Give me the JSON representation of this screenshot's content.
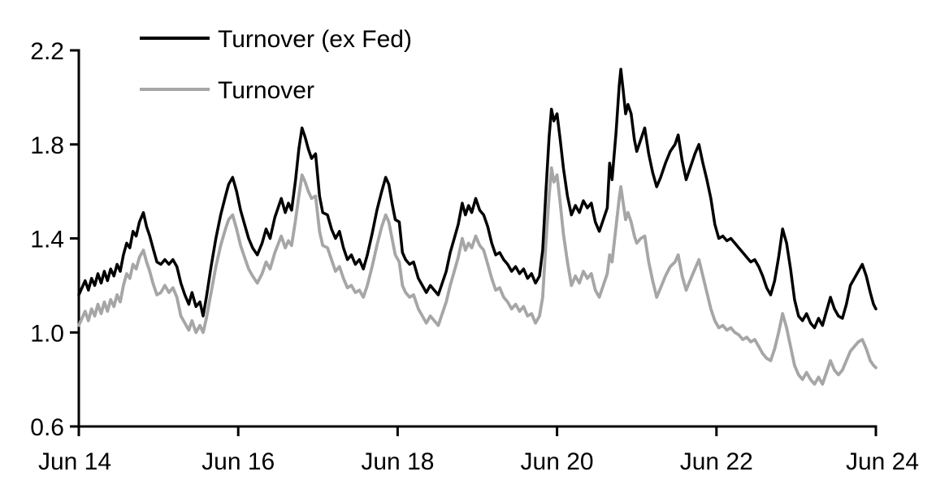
{
  "page": {
    "background": "#ffffff"
  },
  "chart_data": {
    "type": "line",
    "title": "",
    "xlabel": "",
    "ylabel": "",
    "grid": false,
    "legend_position": "top-left-inside",
    "x_axis": {
      "unit": "years since Jun 2014",
      "tick_positions": [
        0,
        2,
        4,
        6,
        8,
        10
      ],
      "tick_labels": [
        "Jun 14",
        "Jun 16",
        "Jun 18",
        "Jun 20",
        "Jun 22",
        "Jun 24"
      ]
    },
    "y_axis": {
      "range": [
        0.6,
        2.2
      ],
      "tick_values": [
        2.2,
        1.8,
        1.4,
        1.0,
        0.6
      ],
      "tick_labels": [
        "2.2",
        "1.8",
        "1.4",
        "1.0",
        "0.6"
      ]
    },
    "x": [
      0,
      0.04,
      0.08,
      0.12,
      0.16,
      0.2,
      0.24,
      0.28,
      0.32,
      0.36,
      0.4,
      0.44,
      0.48,
      0.52,
      0.56,
      0.6,
      0.64,
      0.68,
      0.72,
      0.76,
      0.81,
      0.85,
      0.89,
      0.93,
      0.98,
      1.03,
      1.08,
      1.13,
      1.18,
      1.23,
      1.28,
      1.33,
      1.38,
      1.42,
      1.47,
      1.52,
      1.56,
      1.6,
      1.66,
      1.72,
      1.78,
      1.84,
      1.88,
      1.93,
      1.98,
      2.03,
      2.08,
      2.13,
      2.18,
      2.24,
      2.3,
      2.35,
      2.4,
      2.46,
      2.54,
      2.59,
      2.63,
      2.67,
      2.72,
      2.76,
      2.8,
      2.84,
      2.88,
      2.92,
      2.97,
      3.02,
      3.06,
      3.12,
      3.17,
      3.22,
      3.27,
      3.32,
      3.37,
      3.42,
      3.47,
      3.52,
      3.57,
      3.62,
      3.68,
      3.74,
      3.8,
      3.85,
      3.89,
      3.93,
      3.97,
      4.02,
      4.06,
      4.1,
      4.15,
      4.2,
      4.26,
      4.31,
      4.36,
      4.41,
      4.46,
      4.51,
      4.56,
      4.61,
      4.66,
      4.71,
      4.76,
      4.81,
      4.85,
      4.89,
      4.93,
      4.98,
      5.03,
      5.08,
      5.13,
      5.18,
      5.23,
      5.28,
      5.33,
      5.38,
      5.43,
      5.48,
      5.53,
      5.58,
      5.63,
      5.68,
      5.73,
      5.78,
      5.82,
      5.86,
      5.9,
      5.93,
      5.96,
      6.0,
      6.04,
      6.08,
      6.13,
      6.18,
      6.23,
      6.28,
      6.33,
      6.38,
      6.43,
      6.48,
      6.53,
      6.58,
      6.63,
      6.66,
      6.69,
      6.74,
      6.78,
      6.8,
      6.83,
      6.86,
      6.89,
      6.93,
      6.97,
      7.0,
      7.05,
      7.1,
      7.15,
      7.2,
      7.25,
      7.3,
      7.36,
      7.42,
      7.48,
      7.52,
      7.57,
      7.62,
      7.68,
      7.73,
      7.78,
      7.83,
      7.88,
      7.93,
      7.98,
      8.03,
      8.08,
      8.13,
      8.18,
      8.23,
      8.28,
      8.33,
      8.38,
      8.43,
      8.48,
      8.53,
      8.58,
      8.63,
      8.68,
      8.73,
      8.78,
      8.83,
      8.88,
      8.93,
      8.98,
      9.03,
      9.08,
      9.13,
      9.18,
      9.23,
      9.28,
      9.33,
      9.38,
      9.43,
      9.48,
      9.53,
      9.58,
      9.63,
      9.68,
      9.73,
      9.78,
      9.83,
      9.88,
      9.93,
      9.97,
      10.0
    ],
    "series": [
      {
        "name": "Turnover (ex Fed)",
        "color": "#000000",
        "values": [
          1.16,
          1.19,
          1.22,
          1.18,
          1.23,
          1.2,
          1.25,
          1.21,
          1.26,
          1.22,
          1.27,
          1.24,
          1.29,
          1.26,
          1.33,
          1.38,
          1.36,
          1.43,
          1.41,
          1.47,
          1.51,
          1.45,
          1.41,
          1.36,
          1.3,
          1.29,
          1.31,
          1.29,
          1.31,
          1.28,
          1.21,
          1.16,
          1.12,
          1.17,
          1.11,
          1.13,
          1.07,
          1.15,
          1.28,
          1.4,
          1.5,
          1.58,
          1.63,
          1.66,
          1.6,
          1.52,
          1.46,
          1.4,
          1.36,
          1.33,
          1.38,
          1.44,
          1.4,
          1.49,
          1.57,
          1.51,
          1.55,
          1.52,
          1.65,
          1.78,
          1.87,
          1.83,
          1.78,
          1.74,
          1.76,
          1.58,
          1.51,
          1.5,
          1.44,
          1.4,
          1.43,
          1.36,
          1.31,
          1.33,
          1.29,
          1.31,
          1.27,
          1.33,
          1.42,
          1.52,
          1.6,
          1.66,
          1.63,
          1.55,
          1.48,
          1.47,
          1.34,
          1.31,
          1.29,
          1.3,
          1.23,
          1.2,
          1.17,
          1.2,
          1.18,
          1.16,
          1.21,
          1.26,
          1.34,
          1.4,
          1.46,
          1.55,
          1.5,
          1.54,
          1.51,
          1.57,
          1.52,
          1.5,
          1.45,
          1.38,
          1.33,
          1.34,
          1.31,
          1.29,
          1.26,
          1.28,
          1.25,
          1.27,
          1.23,
          1.25,
          1.21,
          1.24,
          1.35,
          1.6,
          1.83,
          1.95,
          1.9,
          1.93,
          1.82,
          1.7,
          1.58,
          1.5,
          1.54,
          1.51,
          1.56,
          1.53,
          1.55,
          1.47,
          1.43,
          1.48,
          1.53,
          1.72,
          1.65,
          1.85,
          2.05,
          2.12,
          2.03,
          1.93,
          1.97,
          1.93,
          1.82,
          1.77,
          1.82,
          1.87,
          1.76,
          1.68,
          1.62,
          1.66,
          1.72,
          1.77,
          1.8,
          1.84,
          1.73,
          1.65,
          1.71,
          1.76,
          1.8,
          1.72,
          1.65,
          1.57,
          1.46,
          1.4,
          1.41,
          1.39,
          1.4,
          1.38,
          1.36,
          1.34,
          1.32,
          1.3,
          1.31,
          1.28,
          1.24,
          1.19,
          1.16,
          1.22,
          1.32,
          1.44,
          1.38,
          1.27,
          1.14,
          1.07,
          1.05,
          1.08,
          1.04,
          1.02,
          1.06,
          1.03,
          1.09,
          1.15,
          1.1,
          1.07,
          1.06,
          1.12,
          1.2,
          1.23,
          1.26,
          1.29,
          1.24,
          1.17,
          1.12,
          1.1
        ]
      },
      {
        "name": "Turnover",
        "color": "#a6a6a6",
        "values": [
          1.03,
          1.06,
          1.09,
          1.05,
          1.1,
          1.07,
          1.12,
          1.08,
          1.13,
          1.09,
          1.14,
          1.11,
          1.16,
          1.13,
          1.2,
          1.25,
          1.23,
          1.29,
          1.27,
          1.32,
          1.35,
          1.3,
          1.26,
          1.21,
          1.16,
          1.17,
          1.2,
          1.17,
          1.19,
          1.15,
          1.07,
          1.04,
          1.01,
          1.05,
          1.0,
          1.03,
          1.0,
          1.06,
          1.17,
          1.28,
          1.37,
          1.44,
          1.48,
          1.5,
          1.44,
          1.37,
          1.32,
          1.27,
          1.24,
          1.21,
          1.25,
          1.3,
          1.27,
          1.34,
          1.41,
          1.36,
          1.39,
          1.37,
          1.48,
          1.58,
          1.67,
          1.64,
          1.6,
          1.57,
          1.58,
          1.43,
          1.37,
          1.36,
          1.31,
          1.26,
          1.28,
          1.23,
          1.19,
          1.2,
          1.17,
          1.18,
          1.15,
          1.2,
          1.28,
          1.37,
          1.45,
          1.5,
          1.47,
          1.4,
          1.33,
          1.3,
          1.2,
          1.17,
          1.15,
          1.16,
          1.1,
          1.07,
          1.04,
          1.07,
          1.05,
          1.03,
          1.08,
          1.13,
          1.2,
          1.26,
          1.32,
          1.4,
          1.35,
          1.38,
          1.36,
          1.41,
          1.37,
          1.35,
          1.29,
          1.23,
          1.18,
          1.19,
          1.15,
          1.13,
          1.1,
          1.12,
          1.09,
          1.11,
          1.07,
          1.08,
          1.04,
          1.07,
          1.15,
          1.38,
          1.58,
          1.7,
          1.64,
          1.67,
          1.55,
          1.42,
          1.3,
          1.2,
          1.24,
          1.21,
          1.26,
          1.23,
          1.25,
          1.18,
          1.15,
          1.2,
          1.25,
          1.33,
          1.3,
          1.45,
          1.57,
          1.62,
          1.55,
          1.48,
          1.51,
          1.47,
          1.41,
          1.38,
          1.4,
          1.41,
          1.3,
          1.22,
          1.15,
          1.19,
          1.24,
          1.28,
          1.3,
          1.33,
          1.24,
          1.18,
          1.23,
          1.27,
          1.31,
          1.24,
          1.17,
          1.1,
          1.05,
          1.02,
          1.03,
          1.01,
          1.02,
          1.0,
          0.99,
          0.97,
          0.98,
          0.96,
          0.97,
          0.94,
          0.91,
          0.89,
          0.88,
          0.93,
          1.0,
          1.08,
          1.02,
          0.94,
          0.86,
          0.82,
          0.8,
          0.83,
          0.8,
          0.78,
          0.81,
          0.78,
          0.83,
          0.88,
          0.84,
          0.82,
          0.84,
          0.88,
          0.92,
          0.94,
          0.96,
          0.97,
          0.93,
          0.88,
          0.86,
          0.85
        ]
      }
    ]
  }
}
